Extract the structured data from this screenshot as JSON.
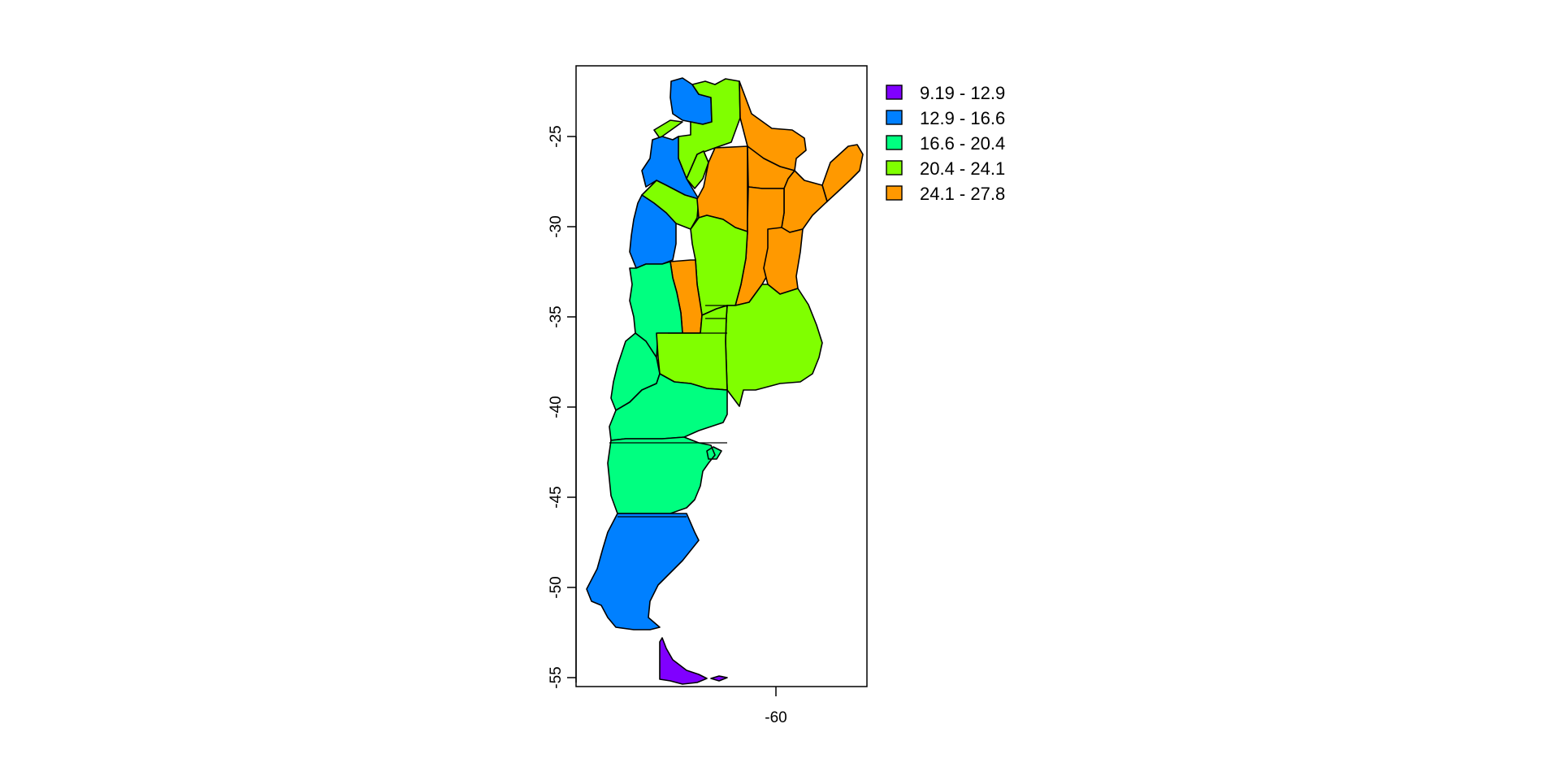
{
  "map": {
    "axis": {
      "x_ticks": [
        {
          "label": "-60",
          "value": -60
        }
      ],
      "y_ticks": [
        {
          "label": "-25",
          "value": -25
        },
        {
          "label": "-30",
          "value": -30
        },
        {
          "label": "-35",
          "value": -35
        },
        {
          "label": "-40",
          "value": -40
        },
        {
          "label": "-45",
          "value": -45
        },
        {
          "label": "-50",
          "value": -50
        },
        {
          "label": "-55",
          "value": -55
        }
      ]
    },
    "legend": {
      "placement": "top-right, outside plot",
      "entries": [
        {
          "label": "9.19 - 12.9",
          "color": "#8000FF"
        },
        {
          "label": "12.9 - 16.6",
          "color": "#0080FF"
        },
        {
          "label": "16.6 - 20.4",
          "color": "#00FF80"
        },
        {
          "label": "20.4 - 24.1",
          "color": "#80FF00"
        },
        {
          "label": "24.1 - 27.8",
          "color": "#FF9900"
        }
      ]
    }
  }
}
